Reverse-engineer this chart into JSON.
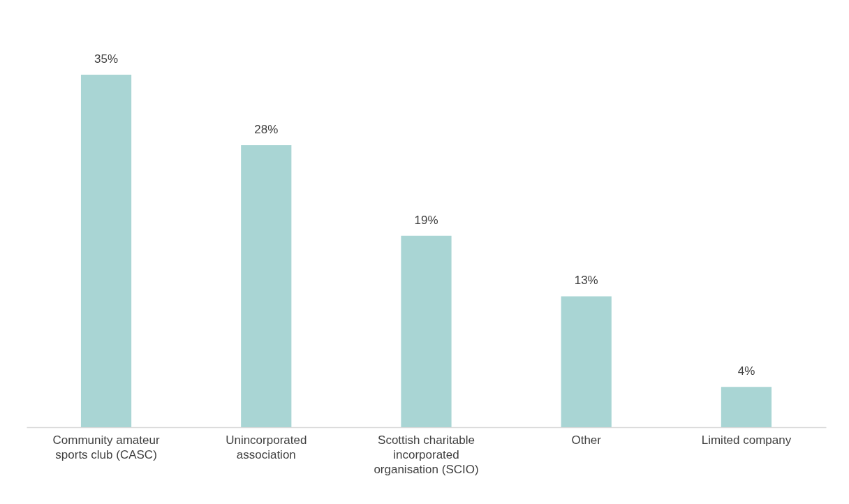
{
  "chart_data": {
    "type": "bar",
    "categories": [
      "Community amateur sports club (CASC)",
      "Unincorporated association",
      "Scottish charitable incorporated organisation (SCIO)",
      "Other",
      "Limited company"
    ],
    "values": [
      35,
      28,
      19,
      13,
      4
    ],
    "value_labels": [
      "35%",
      "28%",
      "19%",
      "13%",
      "4%"
    ],
    "color": "#a9d5d4"
  }
}
